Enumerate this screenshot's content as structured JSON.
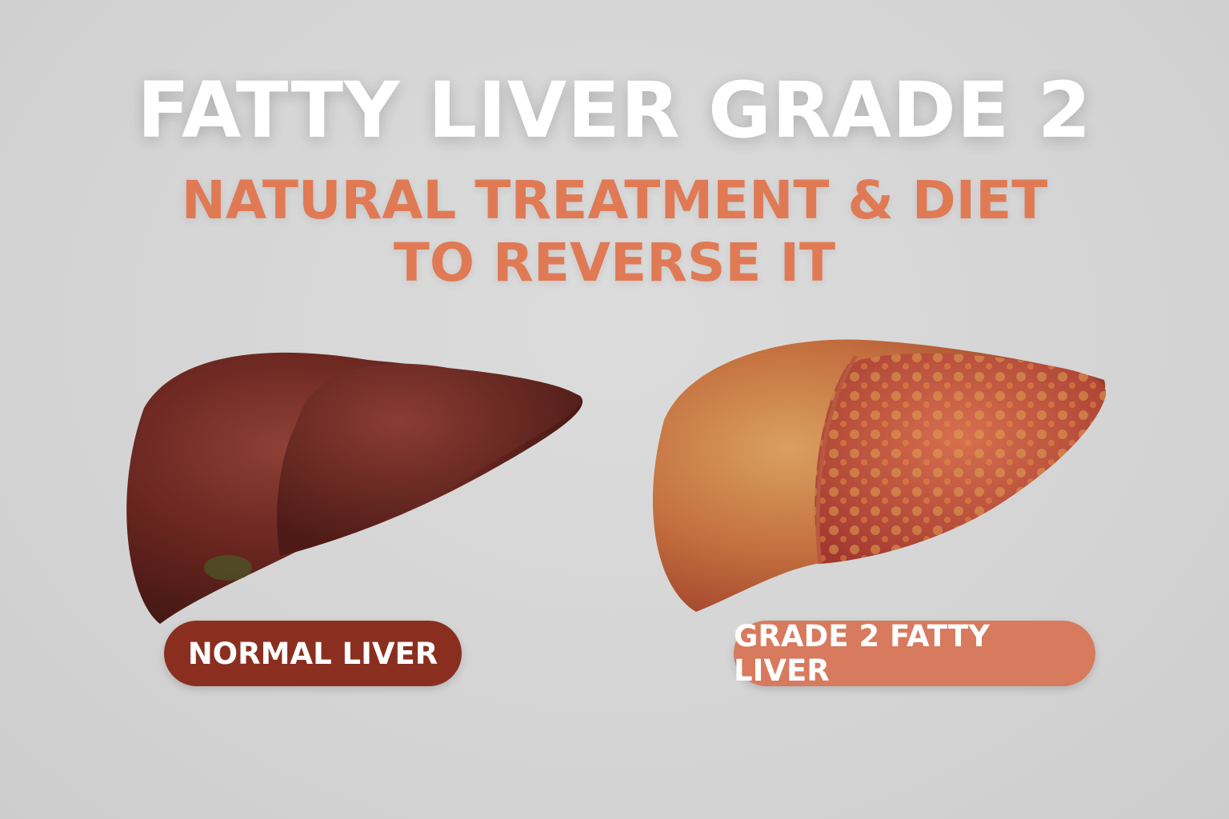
{
  "title": "FATTY LIVER GRADE 2",
  "subtitle_line1": "NATURAL TREATMENT & DIET",
  "subtitle_line2": "TO REVERSE IT",
  "labels": {
    "normal": "NORMAL LIVER",
    "fatty": "GRADE 2 FATTY LIVER"
  },
  "colors": {
    "accent": "#e07a55",
    "normal_label_bg": "#8a2f20",
    "fatty_label_bg": "#d77a5e",
    "normal_liver": "#6e2a22",
    "fatty_liver": "#c8553c"
  }
}
